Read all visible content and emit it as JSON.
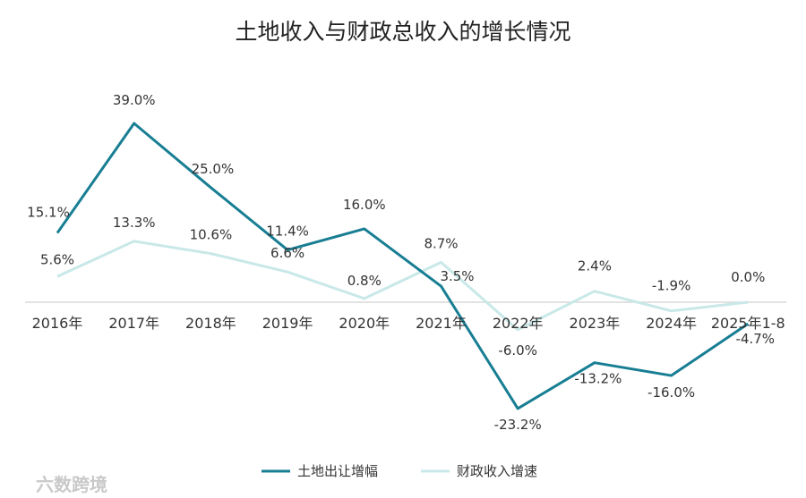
{
  "chart_data": {
    "type": "line",
    "title": "土地收入与财政总收入的增长情况",
    "categories": [
      "2016年",
      "2017年",
      "2018年",
      "2019年",
      "2020年",
      "2021年",
      "2022年",
      "2023年",
      "2024年",
      "2025年1-8"
    ],
    "ylim": [
      -25,
      42
    ],
    "grid": false,
    "legend_position": "bottom",
    "series": [
      {
        "name": "土地出让增幅",
        "color": "#187e93",
        "values": [
          15.1,
          39.0,
          25.0,
          11.4,
          16.0,
          3.5,
          -23.2,
          -13.2,
          -16.0,
          -4.7
        ],
        "labels": [
          "15.1%",
          "39.0%",
          "25.0%",
          "11.4%",
          "16.0%",
          "3.5%",
          "-23.2%",
          "-13.2%",
          "-16.0%",
          "-4.7%"
        ]
      },
      {
        "name": "财政收入增速",
        "color": "#c9e8e8",
        "values": [
          5.6,
          13.3,
          10.6,
          6.6,
          0.8,
          8.7,
          -6.0,
          2.4,
          -1.9,
          0.0
        ],
        "labels": [
          "5.6%",
          "13.3%",
          "10.6%",
          "6.6%",
          "0.8%",
          "8.7%",
          "-6.0%",
          "2.4%",
          "-1.9%",
          "0.0%"
        ]
      }
    ]
  },
  "watermark": "六数跨境"
}
